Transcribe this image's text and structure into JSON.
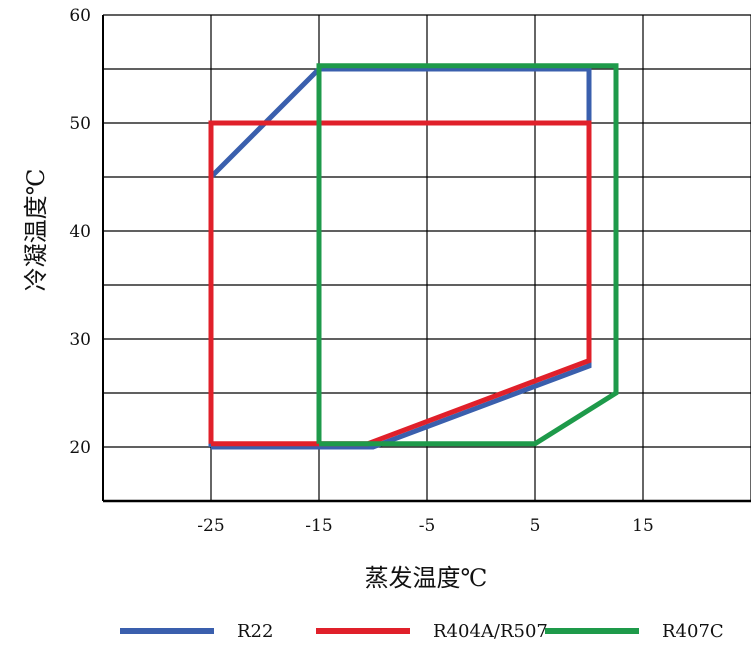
{
  "chart_data": {
    "type": "line",
    "xlabel": "蒸发温度℃",
    "ylabel": "冷凝温度℃",
    "xlim": [
      -35,
      25
    ],
    "ylim": [
      15,
      60
    ],
    "x_ticks": [
      -25,
      -15,
      -5,
      5,
      15
    ],
    "y_ticks": [
      20,
      30,
      40,
      50,
      60
    ],
    "x_tick_labels": [
      "-25",
      "-15",
      "-5",
      "5",
      "15"
    ],
    "y_tick_labels": [
      "20",
      "30",
      "40",
      "50",
      "60"
    ],
    "grid": true,
    "legend_position": "bottom",
    "series": [
      {
        "name": "R22",
        "color": "#3a5fad",
        "points": [
          [
            -25,
            20
          ],
          [
            -25,
            45
          ],
          [
            -15,
            55
          ],
          [
            10,
            55
          ],
          [
            10,
            27.5
          ],
          [
            -10,
            20
          ],
          [
            -25,
            20
          ]
        ]
      },
      {
        "name": "R404A/R507",
        "color": "#e0202a",
        "points": [
          [
            -25,
            20.3
          ],
          [
            -25,
            50
          ],
          [
            10,
            50
          ],
          [
            10,
            28
          ],
          [
            -10.5,
            20.3
          ],
          [
            -25,
            20.3
          ]
        ]
      },
      {
        "name": "R407C",
        "color": "#1e9a4a",
        "points": [
          [
            -15,
            20.3
          ],
          [
            -15,
            55.3
          ],
          [
            12.5,
            55.3
          ],
          [
            12.5,
            25
          ],
          [
            5,
            20.3
          ],
          [
            -15,
            20.3
          ]
        ]
      }
    ]
  }
}
